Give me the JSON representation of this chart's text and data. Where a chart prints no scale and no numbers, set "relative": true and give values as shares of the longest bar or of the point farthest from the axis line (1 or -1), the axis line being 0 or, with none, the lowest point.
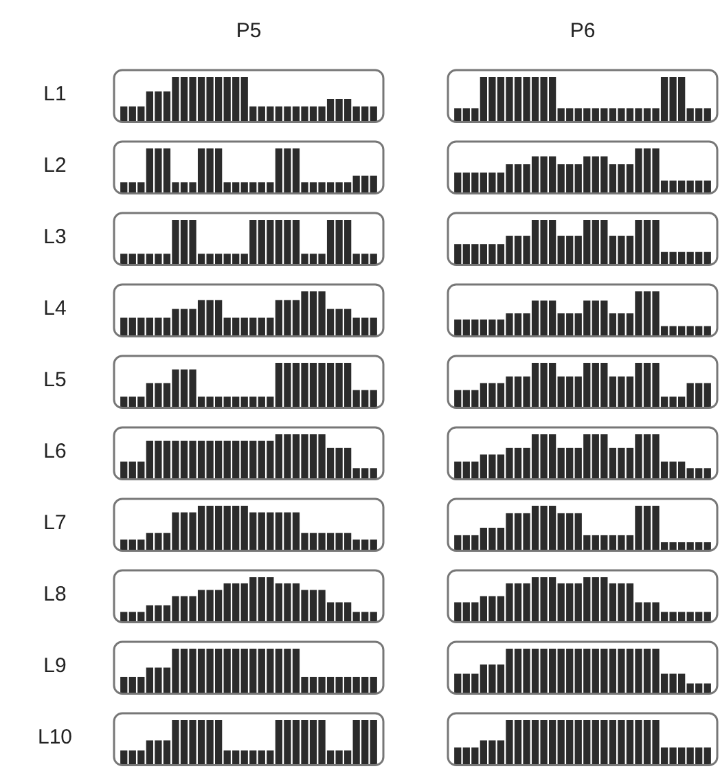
{
  "chart_data": [
    {
      "type": "bar",
      "title": "P5",
      "ylabel": "L1",
      "relative": true,
      "color": "#2b2b2b",
      "categories": [
        null,
        null,
        null,
        null,
        null,
        null,
        null,
        null,
        null,
        null,
        null,
        null,
        null,
        null,
        null,
        null,
        null,
        null,
        null,
        null,
        null,
        null,
        null,
        null,
        null,
        null,
        null,
        null,
        null,
        null
      ],
      "values": [
        0.33,
        0.33,
        0.33,
        0.67,
        0.67,
        0.67,
        1,
        1,
        1,
        1,
        1,
        1,
        1,
        1,
        1,
        0.33,
        0.33,
        0.33,
        0.33,
        0.33,
        0.33,
        0.33,
        0.33,
        0.33,
        0.5,
        0.5,
        0.5,
        0.33,
        0.33,
        0.33
      ]
    },
    {
      "type": "bar",
      "title": "P6",
      "relative": true,
      "color": "#2b2b2b",
      "categories": [
        null,
        null,
        null,
        null,
        null,
        null,
        null,
        null,
        null,
        null,
        null,
        null,
        null,
        null,
        null,
        null,
        null,
        null,
        null,
        null,
        null,
        null,
        null,
        null,
        null,
        null,
        null,
        null,
        null,
        null
      ],
      "values": [
        0.29,
        0.29,
        0.29,
        1,
        1,
        1,
        1,
        1,
        1,
        1,
        1,
        1,
        0.29,
        0.29,
        0.29,
        0.29,
        0.29,
        0.29,
        0.29,
        0.29,
        0.29,
        0.29,
        0.29,
        0.29,
        1,
        1,
        1,
        0.29,
        0.29,
        0.29
      ]
    },
    {
      "type": "bar",
      "ylabel": "L2",
      "relative": true,
      "color": "#2b2b2b",
      "categories": [
        null,
        null,
        null,
        null,
        null,
        null,
        null,
        null,
        null,
        null,
        null,
        null,
        null,
        null,
        null,
        null,
        null,
        null,
        null,
        null,
        null,
        null,
        null,
        null,
        null,
        null,
        null,
        null,
        null,
        null
      ],
      "values": [
        0.23,
        0.23,
        0.23,
        1,
        1,
        1,
        0.23,
        0.23,
        0.23,
        1,
        1,
        1,
        0.23,
        0.23,
        0.23,
        0.23,
        0.23,
        0.23,
        1,
        1,
        1,
        0.23,
        0.23,
        0.23,
        0.23,
        0.23,
        0.23,
        0.38,
        0.38,
        0.38
      ]
    },
    {
      "type": "bar",
      "relative": true,
      "color": "#2b2b2b",
      "categories": [
        null,
        null,
        null,
        null,
        null,
        null,
        null,
        null,
        null,
        null,
        null,
        null,
        null,
        null,
        null,
        null,
        null,
        null,
        null,
        null,
        null,
        null,
        null,
        null,
        null,
        null,
        null,
        null,
        null,
        null
      ],
      "values": [
        0.45,
        0.45,
        0.45,
        0.45,
        0.45,
        0.45,
        0.64,
        0.64,
        0.64,
        0.82,
        0.82,
        0.82,
        0.64,
        0.64,
        0.64,
        0.82,
        0.82,
        0.82,
        0.64,
        0.64,
        0.64,
        1,
        1,
        1,
        0.27,
        0.27,
        0.27,
        0.27,
        0.27,
        0.27
      ]
    },
    {
      "type": "bar",
      "ylabel": "L3",
      "relative": true,
      "color": "#2b2b2b",
      "categories": [
        null,
        null,
        null,
        null,
        null,
        null,
        null,
        null,
        null,
        null,
        null,
        null,
        null,
        null,
        null,
        null,
        null,
        null,
        null,
        null,
        null,
        null,
        null,
        null,
        null,
        null,
        null,
        null,
        null,
        null
      ],
      "values": [
        0.23,
        0.23,
        0.23,
        0.23,
        0.23,
        0.23,
        1,
        1,
        1,
        0.23,
        0.23,
        0.23,
        0.23,
        0.23,
        0.23,
        1,
        1,
        1,
        1,
        1,
        1,
        0.23,
        0.23,
        0.23,
        1,
        1,
        1,
        0.23,
        0.23,
        0.23
      ]
    },
    {
      "type": "bar",
      "relative": true,
      "color": "#2b2b2b",
      "categories": [
        null,
        null,
        null,
        null,
        null,
        null,
        null,
        null,
        null,
        null,
        null,
        null,
        null,
        null,
        null,
        null,
        null,
        null,
        null,
        null,
        null,
        null,
        null,
        null,
        null,
        null,
        null,
        null,
        null,
        null
      ],
      "values": [
        0.45,
        0.45,
        0.45,
        0.45,
        0.45,
        0.45,
        0.64,
        0.64,
        0.64,
        1,
        1,
        1,
        0.64,
        0.64,
        0.64,
        1,
        1,
        1,
        0.64,
        0.64,
        0.64,
        1,
        1,
        1,
        0.27,
        0.27,
        0.27,
        0.27,
        0.27,
        0.27
      ]
    },
    {
      "type": "bar",
      "ylabel": "L4",
      "relative": true,
      "color": "#2b2b2b",
      "categories": [
        null,
        null,
        null,
        null,
        null,
        null,
        null,
        null,
        null,
        null,
        null,
        null,
        null,
        null,
        null,
        null,
        null,
        null,
        null,
        null,
        null,
        null,
        null,
        null,
        null,
        null,
        null,
        null,
        null,
        null
      ],
      "values": [
        0.4,
        0.4,
        0.4,
        0.4,
        0.4,
        0.4,
        0.6,
        0.6,
        0.6,
        0.8,
        0.8,
        0.8,
        0.4,
        0.4,
        0.4,
        0.4,
        0.4,
        0.4,
        0.8,
        0.8,
        0.8,
        1,
        1,
        1,
        0.6,
        0.6,
        0.6,
        0.4,
        0.4,
        0.4
      ]
    },
    {
      "type": "bar",
      "relative": true,
      "color": "#2b2b2b",
      "categories": [
        null,
        null,
        null,
        null,
        null,
        null,
        null,
        null,
        null,
        null,
        null,
        null,
        null,
        null,
        null,
        null,
        null,
        null,
        null,
        null,
        null,
        null,
        null,
        null,
        null,
        null,
        null,
        null,
        null,
        null
      ],
      "values": [
        0.36,
        0.36,
        0.36,
        0.36,
        0.36,
        0.36,
        0.5,
        0.5,
        0.5,
        0.79,
        0.79,
        0.79,
        0.5,
        0.5,
        0.5,
        0.79,
        0.79,
        0.79,
        0.5,
        0.5,
        0.5,
        1,
        1,
        1,
        0.21,
        0.21,
        0.21,
        0.21,
        0.21,
        0.21
      ]
    },
    {
      "type": "bar",
      "ylabel": "L5",
      "relative": true,
      "color": "#2b2b2b",
      "categories": [
        null,
        null,
        null,
        null,
        null,
        null,
        null,
        null,
        null,
        null,
        null,
        null,
        null,
        null,
        null,
        null,
        null,
        null,
        null,
        null,
        null,
        null,
        null,
        null,
        null,
        null,
        null,
        null,
        null,
        null
      ],
      "values": [
        0.23,
        0.23,
        0.23,
        0.54,
        0.54,
        0.54,
        0.85,
        0.85,
        0.85,
        0.23,
        0.23,
        0.23,
        0.23,
        0.23,
        0.23,
        0.23,
        0.23,
        0.23,
        1,
        1,
        1,
        1,
        1,
        1,
        1,
        1,
        1,
        0.38,
        0.38,
        0.38
      ]
    },
    {
      "type": "bar",
      "relative": true,
      "color": "#2b2b2b",
      "categories": [
        null,
        null,
        null,
        null,
        null,
        null,
        null,
        null,
        null,
        null,
        null,
        null,
        null,
        null,
        null,
        null,
        null,
        null,
        null,
        null,
        null,
        null,
        null,
        null,
        null,
        null,
        null,
        null,
        null,
        null
      ],
      "values": [
        0.38,
        0.38,
        0.38,
        0.54,
        0.54,
        0.54,
        0.69,
        0.69,
        0.69,
        1,
        1,
        1,
        0.69,
        0.69,
        0.69,
        1,
        1,
        1,
        0.69,
        0.69,
        0.69,
        1,
        1,
        1,
        0.23,
        0.23,
        0.23,
        0.54,
        0.54,
        0.54
      ]
    },
    {
      "type": "bar",
      "ylabel": "L6",
      "relative": true,
      "color": "#2b2b2b",
      "categories": [
        null,
        null,
        null,
        null,
        null,
        null,
        null,
        null,
        null,
        null,
        null,
        null,
        null,
        null,
        null,
        null,
        null,
        null,
        null,
        null,
        null,
        null,
        null,
        null,
        null,
        null,
        null,
        null,
        null,
        null
      ],
      "values": [
        0.38,
        0.38,
        0.38,
        0.85,
        0.85,
        0.85,
        0.85,
        0.85,
        0.85,
        0.85,
        0.85,
        0.85,
        0.85,
        0.85,
        0.85,
        0.85,
        0.85,
        0.85,
        1,
        1,
        1,
        1,
        1,
        1,
        0.69,
        0.69,
        0.69,
        0.23,
        0.23,
        0.23
      ]
    },
    {
      "type": "bar",
      "relative": true,
      "color": "#2b2b2b",
      "categories": [
        null,
        null,
        null,
        null,
        null,
        null,
        null,
        null,
        null,
        null,
        null,
        null,
        null,
        null,
        null,
        null,
        null,
        null,
        null,
        null,
        null,
        null,
        null,
        null,
        null,
        null,
        null,
        null,
        null,
        null
      ],
      "values": [
        0.38,
        0.38,
        0.38,
        0.54,
        0.54,
        0.54,
        0.69,
        0.69,
        0.69,
        1,
        1,
        1,
        0.69,
        0.69,
        0.69,
        1,
        1,
        1,
        0.69,
        0.69,
        0.69,
        1,
        1,
        1,
        0.38,
        0.38,
        0.38,
        0.23,
        0.23,
        0.23
      ]
    },
    {
      "type": "bar",
      "ylabel": "L7",
      "relative": true,
      "color": "#2b2b2b",
      "categories": [
        null,
        null,
        null,
        null,
        null,
        null,
        null,
        null,
        null,
        null,
        null,
        null,
        null,
        null,
        null,
        null,
        null,
        null,
        null,
        null,
        null,
        null,
        null,
        null,
        null,
        null,
        null,
        null,
        null,
        null
      ],
      "values": [
        0.23,
        0.23,
        0.23,
        0.38,
        0.38,
        0.38,
        0.85,
        0.85,
        0.85,
        1,
        1,
        1,
        1,
        1,
        1,
        0.85,
        0.85,
        0.85,
        0.85,
        0.85,
        0.85,
        0.38,
        0.38,
        0.38,
        0.38,
        0.38,
        0.38,
        0.23,
        0.23,
        0.23
      ]
    },
    {
      "type": "bar",
      "relative": true,
      "color": "#2b2b2b",
      "categories": [
        null,
        null,
        null,
        null,
        null,
        null,
        null,
        null,
        null,
        null,
        null,
        null,
        null,
        null,
        null,
        null,
        null,
        null,
        null,
        null,
        null,
        null,
        null,
        null,
        null,
        null,
        null,
        null,
        null,
        null
      ],
      "values": [
        0.33,
        0.33,
        0.33,
        0.5,
        0.5,
        0.5,
        0.83,
        0.83,
        0.83,
        1,
        1,
        1,
        0.83,
        0.83,
        0.83,
        0.33,
        0.33,
        0.33,
        0.33,
        0.33,
        0.33,
        1,
        1,
        1,
        0.17,
        0.17,
        0.17,
        0.17,
        0.17,
        0.17
      ]
    },
    {
      "type": "bar",
      "ylabel": "L8",
      "relative": true,
      "color": "#2b2b2b",
      "categories": [
        null,
        null,
        null,
        null,
        null,
        null,
        null,
        null,
        null,
        null,
        null,
        null,
        null,
        null,
        null,
        null,
        null,
        null,
        null,
        null,
        null,
        null,
        null,
        null,
        null,
        null,
        null,
        null,
        null,
        null
      ],
      "values": [
        0.21,
        0.21,
        0.21,
        0.36,
        0.36,
        0.36,
        0.57,
        0.57,
        0.57,
        0.71,
        0.71,
        0.71,
        0.86,
        0.86,
        0.86,
        1,
        1,
        1,
        0.86,
        0.86,
        0.86,
        0.71,
        0.71,
        0.71,
        0.43,
        0.43,
        0.43,
        0.21,
        0.21,
        0.21
      ]
    },
    {
      "type": "bar",
      "relative": true,
      "color": "#2b2b2b",
      "categories": [
        null,
        null,
        null,
        null,
        null,
        null,
        null,
        null,
        null,
        null,
        null,
        null,
        null,
        null,
        null,
        null,
        null,
        null,
        null,
        null,
        null,
        null,
        null,
        null,
        null,
        null,
        null,
        null,
        null,
        null
      ],
      "values": [
        0.43,
        0.43,
        0.43,
        0.57,
        0.57,
        0.57,
        0.86,
        0.86,
        0.86,
        1,
        1,
        1,
        0.86,
        0.86,
        0.86,
        1,
        1,
        1,
        0.86,
        0.86,
        0.86,
        0.43,
        0.43,
        0.43,
        0.21,
        0.21,
        0.21,
        0.21,
        0.21,
        0.21
      ]
    },
    {
      "type": "bar",
      "ylabel": "L9",
      "relative": true,
      "color": "#2b2b2b",
      "categories": [
        null,
        null,
        null,
        null,
        null,
        null,
        null,
        null,
        null,
        null,
        null,
        null,
        null,
        null,
        null,
        null,
        null,
        null,
        null,
        null,
        null,
        null,
        null,
        null,
        null,
        null,
        null,
        null,
        null,
        null
      ],
      "values": [
        0.36,
        0.36,
        0.36,
        0.57,
        0.57,
        0.57,
        1,
        1,
        1,
        1,
        1,
        1,
        1,
        1,
        1,
        1,
        1,
        1,
        1,
        1,
        1,
        0.36,
        0.36,
        0.36,
        0.36,
        0.36,
        0.36,
        0.36,
        0.36,
        0.36
      ]
    },
    {
      "type": "bar",
      "relative": true,
      "color": "#2b2b2b",
      "categories": [
        null,
        null,
        null,
        null,
        null,
        null,
        null,
        null,
        null,
        null,
        null,
        null,
        null,
        null,
        null,
        null,
        null,
        null,
        null,
        null,
        null,
        null,
        null,
        null,
        null,
        null,
        null,
        null,
        null,
        null
      ],
      "values": [
        0.43,
        0.43,
        0.43,
        0.64,
        0.64,
        0.64,
        1,
        1,
        1,
        1,
        1,
        1,
        1,
        1,
        1,
        1,
        1,
        1,
        1,
        1,
        1,
        1,
        1,
        1,
        0.43,
        0.43,
        0.43,
        0.21,
        0.21,
        0.21
      ]
    },
    {
      "type": "bar",
      "ylabel": "L10",
      "relative": true,
      "color": "#2b2b2b",
      "categories": [
        null,
        null,
        null,
        null,
        null,
        null,
        null,
        null,
        null,
        null,
        null,
        null,
        null,
        null,
        null,
        null,
        null,
        null,
        null,
        null,
        null,
        null,
        null,
        null,
        null,
        null,
        null,
        null,
        null,
        null
      ],
      "values": [
        0.31,
        0.31,
        0.31,
        0.54,
        0.54,
        0.54,
        1,
        1,
        1,
        1,
        1,
        1,
        0.31,
        0.31,
        0.31,
        0.31,
        0.31,
        0.31,
        1,
        1,
        1,
        1,
        1,
        1,
        0.31,
        0.31,
        0.31,
        1,
        1,
        1
      ]
    },
    {
      "type": "bar",
      "relative": true,
      "color": "#2b2b2b",
      "categories": [
        null,
        null,
        null,
        null,
        null,
        null,
        null,
        null,
        null,
        null,
        null,
        null,
        null,
        null,
        null,
        null,
        null,
        null,
        null,
        null,
        null,
        null,
        null,
        null,
        null,
        null,
        null,
        null,
        null,
        null
      ],
      "values": [
        0.38,
        0.38,
        0.38,
        0.54,
        0.54,
        0.54,
        1,
        1,
        1,
        1,
        1,
        1,
        1,
        1,
        1,
        1,
        1,
        1,
        1,
        1,
        1,
        1,
        1,
        1,
        0.38,
        0.38,
        0.38,
        0.38,
        0.38,
        0.38
      ]
    }
  ]
}
